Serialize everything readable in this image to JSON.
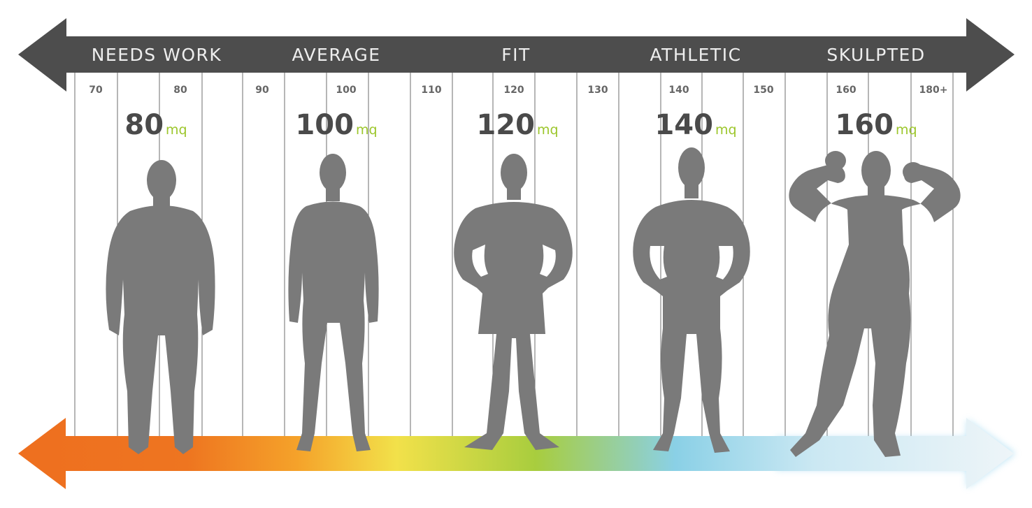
{
  "categories": [
    {
      "label": "NEEDS WORK"
    },
    {
      "label": "AVERAGE"
    },
    {
      "label": "FIT"
    },
    {
      "label": "ATHLETIC"
    },
    {
      "label": "SKULPTED"
    }
  ],
  "ticks": [
    "70",
    "80",
    "90",
    "100",
    "110",
    "120",
    "130",
    "140",
    "150",
    "160",
    "180+"
  ],
  "scores": [
    {
      "value": "80",
      "unit": "mq",
      "figure": "body-silhouette-needs-work-icon"
    },
    {
      "value": "100",
      "unit": "mq",
      "figure": "body-silhouette-average-icon"
    },
    {
      "value": "120",
      "unit": "mq",
      "figure": "body-silhouette-fit-icon"
    },
    {
      "value": "140",
      "unit": "mq",
      "figure": "body-silhouette-athletic-icon"
    },
    {
      "value": "160",
      "unit": "mq",
      "figure": "body-silhouette-skulpted-icon"
    }
  ],
  "colors": {
    "top_arrow": "#4d4d4d",
    "grid_line": "#6e6e6e",
    "figure": "#7a7a7a",
    "mq_accent": "#9cc62b",
    "gradient": [
      "#ee6f1f",
      "#f5a22a",
      "#f2e14a",
      "#a8cd3e",
      "#8ad0e6",
      "#e8f3f8"
    ]
  }
}
